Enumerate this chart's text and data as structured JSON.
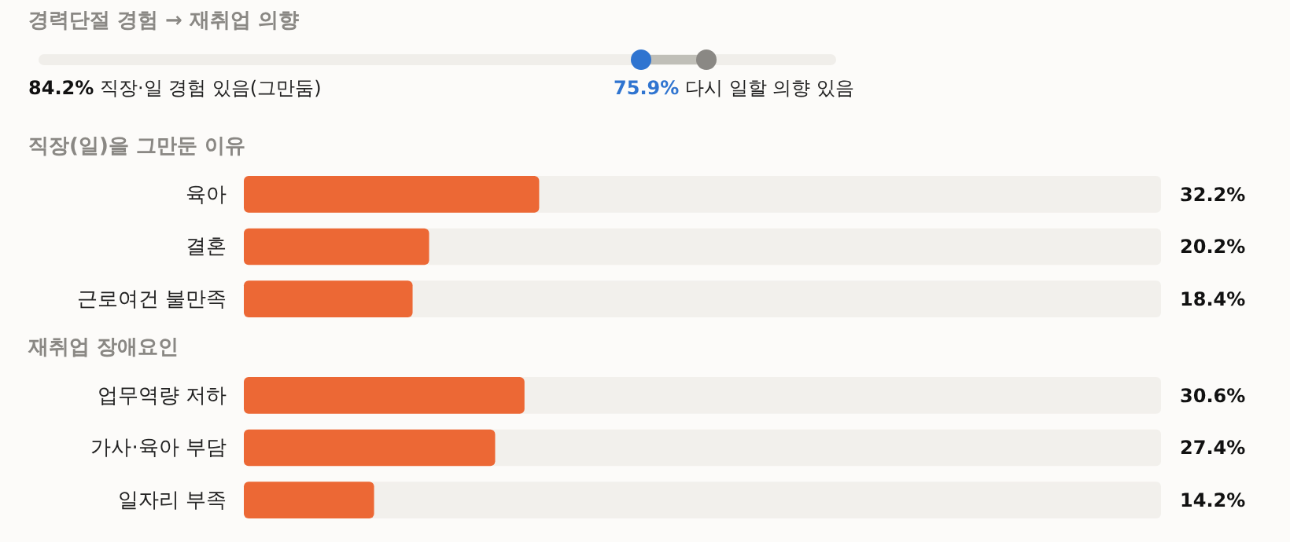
{
  "chart_data": [
    {
      "type": "other",
      "title": "경력단절 경험 → 재취업 의향",
      "categories": [
        "직장·일 경험 있음(그만둠)",
        "다시 일할 의향 있음"
      ],
      "values": [
        84.2,
        75.9
      ],
      "value_labels": [
        "84.2%",
        "75.9%"
      ],
      "colors": [
        "#8a8884",
        "#2f74d0"
      ]
    },
    {
      "type": "bar",
      "orientation": "horizontal",
      "title": "직장(일)을 그만둔 이유",
      "categories": [
        "육아",
        "결혼",
        "근로여건 불만족"
      ],
      "values": [
        32.2,
        20.2,
        18.4
      ],
      "value_labels": [
        "32.2%",
        "20.2%",
        "18.4%"
      ],
      "color": "#ec6835",
      "xlim": [
        0,
        100
      ],
      "tick_labels": "y"
    },
    {
      "type": "bar",
      "orientation": "horizontal",
      "title": "재취업 장애요인",
      "categories": [
        "업무역량 저하",
        "가사·육아 부담",
        "일자리 부족"
      ],
      "values": [
        30.6,
        27.4,
        14.2
      ],
      "value_labels": [
        "30.6%",
        "27.4%",
        "14.2%"
      ],
      "color": "#ec6835",
      "xlim": [
        0,
        100
      ],
      "tick_labels": "y"
    }
  ]
}
